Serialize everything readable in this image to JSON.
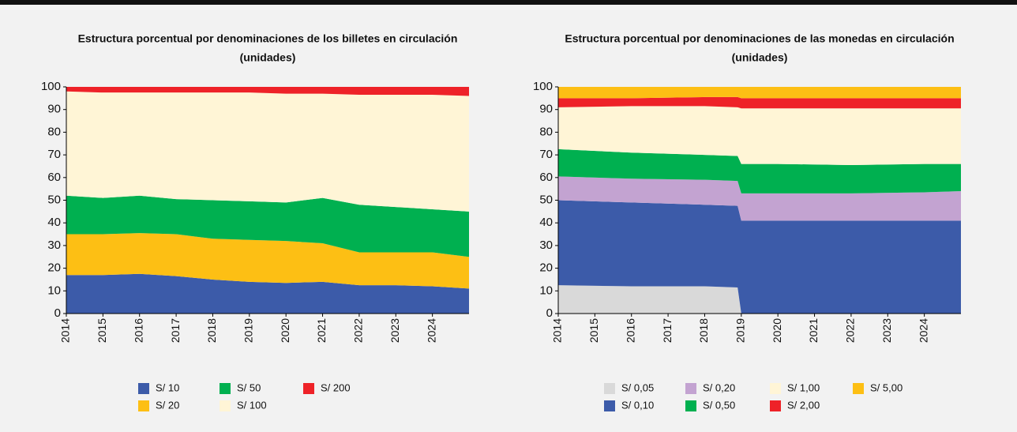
{
  "chart_data": [
    {
      "type": "stacked-area",
      "title": "Estructura porcentual por denominaciones de los billetes en circulación",
      "subtitle": "(unidades)",
      "x": [
        2014,
        2015,
        2016,
        2017,
        2018,
        2019,
        2020,
        2021,
        2022,
        2023,
        2024,
        2025
      ],
      "xlim": [
        2014,
        2025
      ],
      "xticks": [
        2014,
        2015,
        2016,
        2017,
        2018,
        2019,
        2020,
        2021,
        2022,
        2023,
        2024
      ],
      "ylim": [
        0,
        100
      ],
      "yticks": [
        0,
        10,
        20,
        30,
        40,
        50,
        60,
        70,
        80,
        90,
        100
      ],
      "series": [
        {
          "name": "S/ 10",
          "color": "#3c5ba9",
          "values": [
            17,
            17,
            17.5,
            16.5,
            15,
            14,
            13.5,
            14,
            12.5,
            12.5,
            12,
            11
          ]
        },
        {
          "name": "S/ 20",
          "color": "#fdbf14",
          "values": [
            18,
            18,
            18,
            18.5,
            18,
            18.5,
            18.5,
            17,
            14.5,
            14.5,
            15,
            14
          ]
        },
        {
          "name": "S/ 50",
          "color": "#00b050",
          "values": [
            17,
            16,
            16.5,
            15.5,
            17,
            17,
            17,
            20,
            21,
            20,
            19,
            20
          ]
        },
        {
          "name": "S/ 100",
          "color": "#fff5d6",
          "values": [
            46,
            46.5,
            45.5,
            47,
            47.5,
            48,
            48,
            46,
            48.5,
            49.5,
            50.5,
            51
          ]
        },
        {
          "name": "S/ 200",
          "color": "#ee2228",
          "values": [
            2,
            2.5,
            2.5,
            2.5,
            2.5,
            2.5,
            3,
            3,
            3.5,
            3.5,
            3.5,
            4
          ]
        }
      ]
    },
    {
      "type": "stacked-area",
      "title": "Estructura porcentual por denominaciones de las monedas en circulación",
      "subtitle": "(unidades)",
      "x": [
        2014,
        2016,
        2018,
        2018.9,
        2019,
        2020,
        2022,
        2024,
        2025
      ],
      "xlim": [
        2014,
        2025
      ],
      "xticks": [
        2014,
        2015,
        2016,
        2017,
        2018,
        2019,
        2020,
        2021,
        2022,
        2023,
        2024
      ],
      "ylim": [
        0,
        100
      ],
      "yticks": [
        0,
        10,
        20,
        30,
        40,
        50,
        60,
        70,
        80,
        90,
        100
      ],
      "series": [
        {
          "name": "S/ 0,05",
          "color": "#d9d9d9",
          "values": [
            12.5,
            12,
            12,
            11.5,
            0,
            0,
            0,
            0,
            0
          ]
        },
        {
          "name": "S/ 0,10",
          "color": "#3c5ba9",
          "values": [
            37.5,
            37,
            36,
            36,
            41,
            41,
            41,
            41,
            41
          ]
        },
        {
          "name": "S/ 0,20",
          "color": "#c3a3d1",
          "values": [
            10.5,
            10.5,
            11,
            11,
            12,
            12,
            12,
            12.5,
            13
          ]
        },
        {
          "name": "S/ 0,50",
          "color": "#00b050",
          "values": [
            12,
            11.5,
            11,
            11,
            13,
            13,
            12.5,
            12.5,
            12
          ]
        },
        {
          "name": "S/ 1,00",
          "color": "#fff5d6",
          "values": [
            18.5,
            20.5,
            21.5,
            21.5,
            24.5,
            24.5,
            25,
            24.5,
            24.5
          ]
        },
        {
          "name": "S/ 2,00",
          "color": "#ee2228",
          "values": [
            4,
            3.5,
            4,
            4.5,
            4.5,
            4.5,
            4.5,
            4.5,
            4.5
          ]
        },
        {
          "name": "S/ 5,00",
          "color": "#fdbf14",
          "values": [
            5,
            5,
            4.5,
            4.5,
            5,
            5,
            5,
            5,
            5
          ]
        }
      ]
    }
  ]
}
